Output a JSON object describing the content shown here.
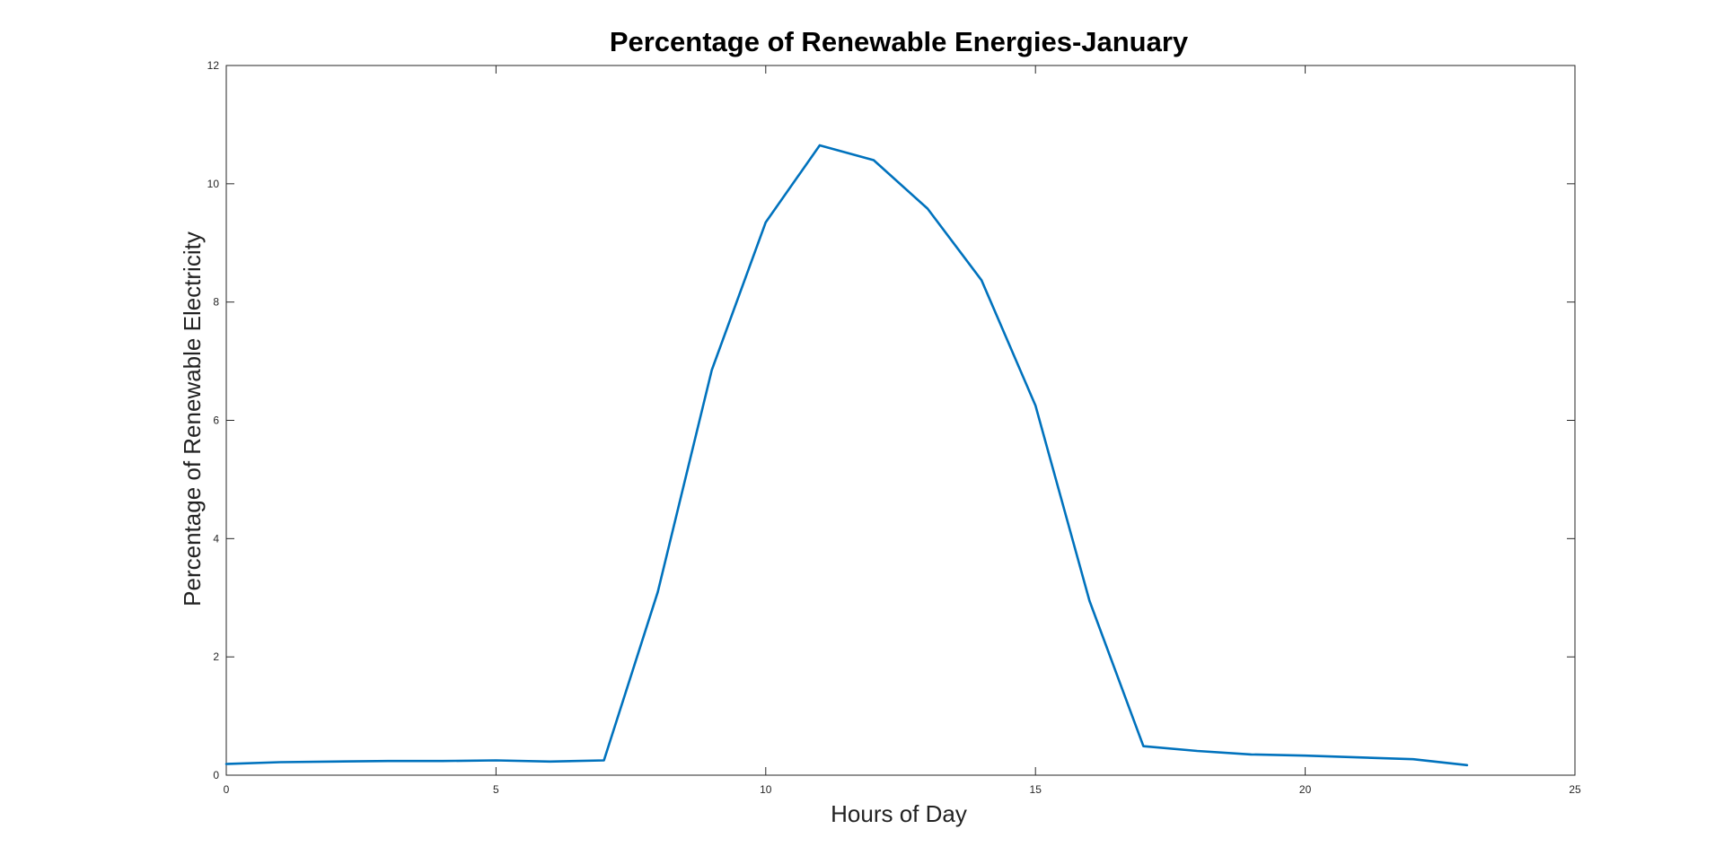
{
  "chart_data": {
    "type": "line",
    "title": "Percentage of Renewable Energies-January",
    "xlabel": "Hours of Day",
    "ylabel": "Percentage of Renewable Electricity",
    "xlim": [
      0,
      25
    ],
    "ylim": [
      0,
      12
    ],
    "xticks": [
      0,
      5,
      10,
      15,
      20,
      25
    ],
    "yticks": [
      0,
      2,
      4,
      6,
      8,
      10,
      12
    ],
    "xtick_labels": [
      "0",
      "5",
      "10",
      "15",
      "20",
      "25"
    ],
    "ytick_labels": [
      "0",
      "2",
      "4",
      "6",
      "8",
      "10",
      "12"
    ],
    "grid": false,
    "series": [
      {
        "color": "#0072BD",
        "x": [
          0,
          1,
          2,
          3,
          4,
          5,
          6,
          7,
          8,
          9,
          10,
          11,
          12,
          13,
          14,
          15,
          16,
          17,
          18,
          19,
          20,
          21,
          22,
          23
        ],
        "y": [
          0.19,
          0.22,
          0.23,
          0.24,
          0.24,
          0.25,
          0.23,
          0.25,
          3.1,
          6.85,
          9.35,
          10.65,
          10.4,
          9.58,
          8.37,
          6.25,
          2.95,
          0.49,
          0.41,
          0.35,
          0.33,
          0.3,
          0.27,
          0.17
        ]
      }
    ]
  }
}
